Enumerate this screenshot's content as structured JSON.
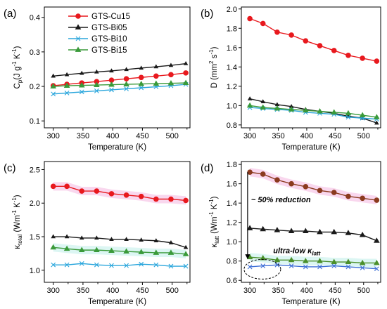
{
  "chart_data": [
    {
      "type": "line",
      "panel": "(a)",
      "xlabel": "Temperature (K)",
      "ylabel_base": "C",
      "ylabel_sub": "p",
      "ylabel_units": "(J g",
      "ylabel_sup1": "-1",
      "ylabel_mid": " K",
      "ylabel_sup2": "-1",
      "ylabel_end": ")",
      "xlim": [
        285,
        530
      ],
      "ylim": [
        0.08,
        0.43
      ],
      "xticks": [
        300,
        350,
        400,
        450,
        500
      ],
      "yticks": [
        0.1,
        0.2,
        0.3,
        0.4
      ],
      "ytick_labels": [
        "0.1",
        "0.2",
        "0.3",
        "0.4"
      ],
      "legend_position": "top-left",
      "x": [
        300,
        323,
        348,
        373,
        398,
        423,
        448,
        473,
        498,
        523
      ],
      "series": [
        {
          "name": "GTS-Cu15",
          "values": [
            0.202,
            0.206,
            0.21,
            0.214,
            0.218,
            0.222,
            0.226,
            0.23,
            0.234,
            0.239
          ]
        },
        {
          "name": "GTS-Bi05",
          "values": [
            0.23,
            0.234,
            0.238,
            0.242,
            0.245,
            0.249,
            0.253,
            0.257,
            0.261,
            0.266
          ]
        },
        {
          "name": "GTS-Bi10",
          "values": [
            0.178,
            0.181,
            0.184,
            0.187,
            0.19,
            0.193,
            0.196,
            0.199,
            0.202,
            0.206
          ]
        },
        {
          "name": "GTS-Bi15",
          "values": [
            0.2,
            0.202,
            0.203,
            0.204,
            0.205,
            0.206,
            0.207,
            0.208,
            0.209,
            0.21
          ]
        }
      ]
    },
    {
      "type": "line",
      "panel": "(b)",
      "xlabel": "Temperature (K)",
      "ylabel_base": "D (mm",
      "ylabel_sup1": "2",
      "ylabel_mid": " s",
      "ylabel_sup2": "-1",
      "ylabel_end": ")",
      "xlim": [
        285,
        530
      ],
      "ylim": [
        0.77,
        2.02
      ],
      "xticks": [
        300,
        350,
        400,
        450,
        500
      ],
      "yticks": [
        0.8,
        1.0,
        1.2,
        1.4,
        1.6,
        1.8,
        2.0
      ],
      "ytick_labels": [
        "0.8",
        "1.0",
        "1.2",
        "1.4",
        "1.6",
        "1.8",
        "2.0"
      ],
      "x": [
        300,
        323,
        348,
        373,
        398,
        423,
        448,
        473,
        498,
        523
      ],
      "series": [
        {
          "values": [
            1.9,
            1.85,
            1.76,
            1.73,
            1.67,
            1.62,
            1.57,
            1.52,
            1.49,
            1.46
          ]
        },
        {
          "values": [
            1.07,
            1.04,
            1.01,
            0.99,
            0.96,
            0.94,
            0.92,
            0.89,
            0.87,
            0.82
          ]
        },
        {
          "values": [
            0.98,
            0.97,
            0.96,
            0.95,
            0.93,
            0.92,
            0.91,
            0.88,
            0.87,
            0.86
          ]
        },
        {
          "values": [
            1.0,
            0.98,
            0.97,
            0.96,
            0.95,
            0.94,
            0.93,
            0.92,
            0.9,
            0.88
          ]
        }
      ]
    },
    {
      "type": "line",
      "panel": "(c)",
      "xlabel": "Temperature (K)",
      "ylabel_base": "κ",
      "ylabel_sub": "total",
      "ylabel_units": " (Wm",
      "ylabel_sup1": "-1",
      "ylabel_mid": " K",
      "ylabel_sup2": "-1",
      "ylabel_end": ")",
      "xlim": [
        285,
        530
      ],
      "ylim": [
        0.82,
        2.62
      ],
      "xticks": [
        300,
        350,
        400,
        450,
        500
      ],
      "yticks": [
        1.0,
        1.5,
        2.0,
        2.5
      ],
      "ytick_labels": [
        "1.0",
        "1.5",
        "2.0",
        "2.5"
      ],
      "x": [
        300,
        323,
        348,
        373,
        398,
        423,
        448,
        473,
        498,
        523
      ],
      "series": [
        {
          "values": [
            2.25,
            2.25,
            2.18,
            2.18,
            2.14,
            2.12,
            2.1,
            2.06,
            2.06,
            2.04
          ]
        },
        {
          "values": [
            1.5,
            1.5,
            1.48,
            1.48,
            1.46,
            1.46,
            1.45,
            1.44,
            1.41,
            1.34
          ]
        },
        {
          "values": [
            1.08,
            1.08,
            1.1,
            1.08,
            1.07,
            1.07,
            1.09,
            1.08,
            1.06,
            1.06
          ]
        },
        {
          "values": [
            1.34,
            1.32,
            1.3,
            1.3,
            1.29,
            1.28,
            1.27,
            1.26,
            1.26,
            1.24
          ]
        }
      ]
    },
    {
      "type": "line",
      "panel": "(d)",
      "xlabel": "Temperature (K)",
      "ylabel_base": "κ",
      "ylabel_sub": "latt",
      "ylabel_units": " (Wm",
      "ylabel_sup1": "-1",
      "ylabel_mid": " K",
      "ylabel_sup2": "-1",
      "ylabel_end": ")",
      "xlim": [
        285,
        530
      ],
      "ylim": [
        0.58,
        1.83
      ],
      "xticks": [
        300,
        350,
        400,
        450,
        500
      ],
      "yticks": [
        0.6,
        0.8,
        1.0,
        1.2,
        1.4,
        1.6,
        1.8
      ],
      "ytick_labels": [
        "0.6",
        "0.8",
        "1.0",
        "1.2",
        "1.4",
        "1.6",
        "1.8"
      ],
      "x": [
        300,
        323,
        348,
        373,
        398,
        423,
        448,
        473,
        498,
        523
      ],
      "series": [
        {
          "values": [
            1.72,
            1.7,
            1.64,
            1.6,
            1.57,
            1.53,
            1.51,
            1.47,
            1.45,
            1.43
          ]
        },
        {
          "values": [
            1.14,
            1.13,
            1.12,
            1.11,
            1.11,
            1.1,
            1.1,
            1.09,
            1.07,
            1.01
          ]
        },
        {
          "values": [
            0.74,
            0.75,
            0.76,
            0.75,
            0.74,
            0.74,
            0.75,
            0.74,
            0.73,
            0.72
          ]
        },
        {
          "values": [
            0.84,
            0.83,
            0.81,
            0.81,
            0.8,
            0.8,
            0.79,
            0.79,
            0.78,
            0.78
          ]
        }
      ],
      "annotations": {
        "reduction": "~ 50% reduction",
        "ultra_prefix": "ultra-low ",
        "ultra_kappa": "κ",
        "ultra_sub": "latt"
      }
    }
  ],
  "series_styles": [
    {
      "color": "#e8191e",
      "marker": "circle",
      "band": "none"
    },
    {
      "color": "#1a1a1a",
      "marker": "triangle-open",
      "band": "none"
    },
    {
      "color": "#2aa6dc",
      "marker": "x",
      "band": "none"
    },
    {
      "color": "#3a9a3a",
      "marker": "triangle",
      "band": "none"
    }
  ],
  "panel_d_styles": [
    {
      "color": "#8b3a1e",
      "marker": "circle"
    },
    {
      "color": "#1a1a1a",
      "marker": "triangle"
    },
    {
      "color": "#3e6fd6",
      "marker": "x"
    },
    {
      "color": "#4a8f2a",
      "marker": "triangle"
    }
  ],
  "band_colors": [
    "#f4b6e0",
    "#ffffff",
    "#ffffff",
    "#bfeeea"
  ]
}
